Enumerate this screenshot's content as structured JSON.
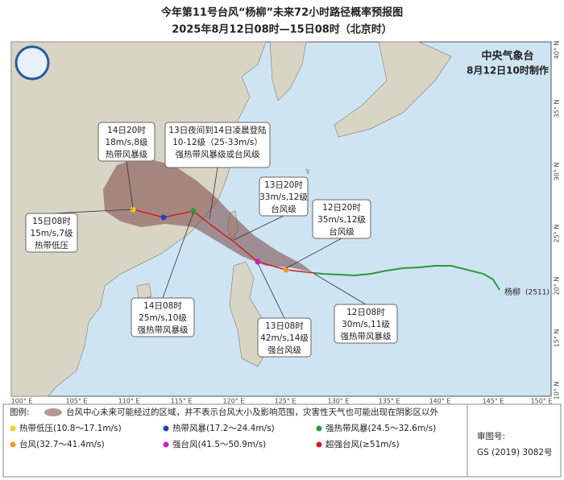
{
  "header": {
    "title": "今年第11号台风“杨柳”未来72小时路径概率预报图",
    "subtitle": "2025年8月12日08时—15日08时（北京时）"
  },
  "agency": {
    "name": "中央气象台",
    "made": "8月12日10时制作"
  },
  "axes": {
    "lon": [
      "100° E",
      "105° E",
      "110° E",
      "115° E",
      "120° E",
      "125° E",
      "130° E",
      "135° E",
      "140° E",
      "145° E",
      "150° E"
    ],
    "lat": [
      "40° N",
      "35° N",
      "30° N",
      "25° N",
      "20° N",
      "15° N",
      "10° N"
    ]
  },
  "typhoon": {
    "name": "杨柳",
    "code": "(2511)"
  },
  "callouts": [
    {
      "lines": [
        "14日20时",
        "18m/s,8级",
        "热带风暴级"
      ]
    },
    {
      "lines": [
        "13日夜间到14日凌晨登陆",
        "10-12级（25-33m/s）",
        "强热带风暴级或台风级"
      ]
    },
    {
      "lines": [
        "13日20时",
        "33m/s,12级",
        "台风级"
      ]
    },
    {
      "lines": [
        "12日20时",
        "35m/s,12级",
        "台风级"
      ]
    },
    {
      "lines": [
        "15日08时",
        "15m/s,7级",
        "热带低压"
      ]
    },
    {
      "lines": [
        "14日08时",
        "25m/s,10级",
        "强热带风暴级"
      ]
    },
    {
      "lines": [
        "13日08时",
        "42m/s,14级",
        "强台风级"
      ]
    },
    {
      "lines": [
        "12日08时",
        "30m/s,11级",
        "强热带风暴级"
      ]
    }
  ],
  "legend": {
    "title": "图例:",
    "cone": "台风中心未来可能经过的区域，并不表示台风大小及影响范围，灾害性天气也可能出现在阴影区以外",
    "items": [
      {
        "label": "热带低压(10.8～17.1m/s)",
        "color": "#f5d020"
      },
      {
        "label": "热带风暴(17.2～24.4m/s)",
        "color": "#2040c0"
      },
      {
        "label": "强热带风暴(24.5～32.6m/s)",
        "color": "#2a9a3a"
      },
      {
        "label": "台风(32.7～41.4m/s)",
        "color": "#f29a30"
      },
      {
        "label": "强台风(41.5～50.9m/s)",
        "color": "#d020c0"
      },
      {
        "label": "超强台风(≥51m/s)",
        "color": "#d02020"
      }
    ]
  },
  "review": {
    "label": "审图号:",
    "number": "GS (2019) 3082号"
  }
}
